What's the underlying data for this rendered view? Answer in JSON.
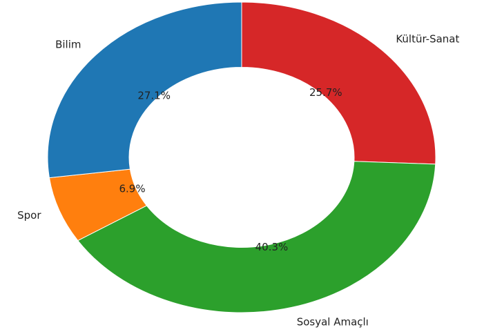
{
  "chart_data": {
    "type": "donut",
    "categories": [
      "Kültür-Sanat",
      "Sosyal Amaçlı",
      "Spor",
      "Bilim"
    ],
    "values": [
      25.7,
      40.3,
      6.9,
      27.1
    ],
    "value_labels": [
      "25.7%",
      "40.3%",
      "6.9%",
      "27.1%"
    ],
    "colors": [
      "#d62728",
      "#2ca02c",
      "#ff7f0e",
      "#1f77b4"
    ]
  }
}
